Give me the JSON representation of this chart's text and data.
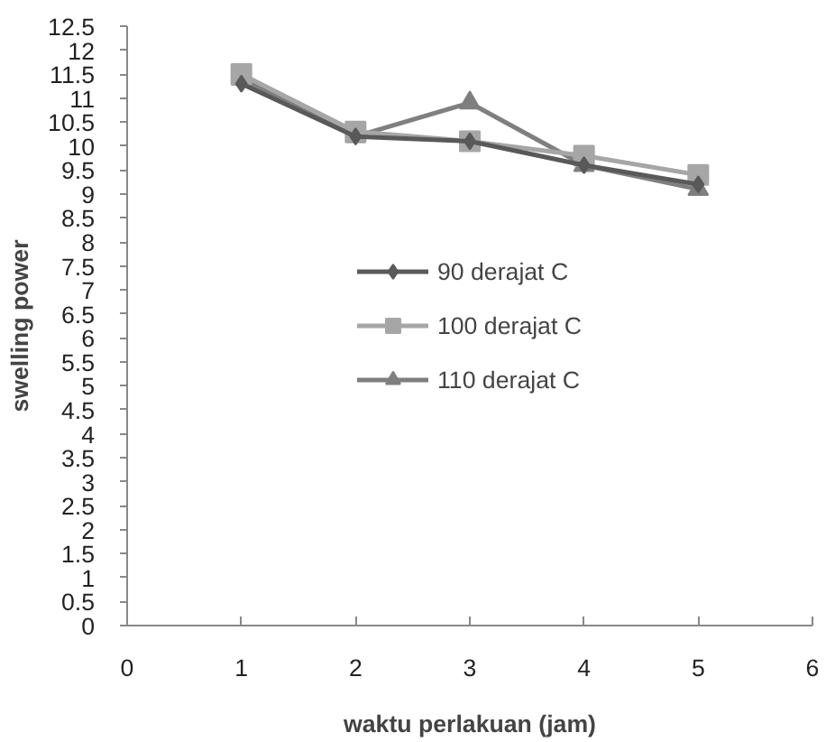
{
  "chart_data": {
    "type": "line",
    "xlabel": "waktu perlakuan (jam)",
    "ylabel": "swelling power",
    "x": [
      1,
      2,
      3,
      4,
      5
    ],
    "series": [
      {
        "name": "90 derajat C",
        "color": "#595959",
        "marker": "diamond",
        "values": [
          11.3,
          10.2,
          10.1,
          9.6,
          9.2
        ]
      },
      {
        "name": "100 derajat C",
        "color": "#a6a6a6",
        "marker": "square",
        "values": [
          11.5,
          10.3,
          10.1,
          9.8,
          9.4
        ]
      },
      {
        "name": "110 derajat C",
        "color": "#7f7f7f",
        "marker": "triangle",
        "values": [
          11.4,
          10.2,
          10.9,
          9.6,
          9.1
        ]
      }
    ],
    "xlim": [
      0,
      6
    ],
    "xticks": [
      0,
      1,
      2,
      3,
      4,
      5,
      6
    ],
    "ylim": [
      0,
      12.5
    ],
    "yticks": [
      0,
      0.5,
      1,
      1.5,
      2,
      2.5,
      3,
      3.5,
      4,
      4.5,
      5,
      5.5,
      6,
      6.5,
      7,
      7.5,
      8,
      8.5,
      9,
      9.5,
      10,
      10.5,
      11,
      11.5,
      12,
      12.5
    ],
    "grid": false,
    "legend": "center",
    "line_style": "solid"
  }
}
